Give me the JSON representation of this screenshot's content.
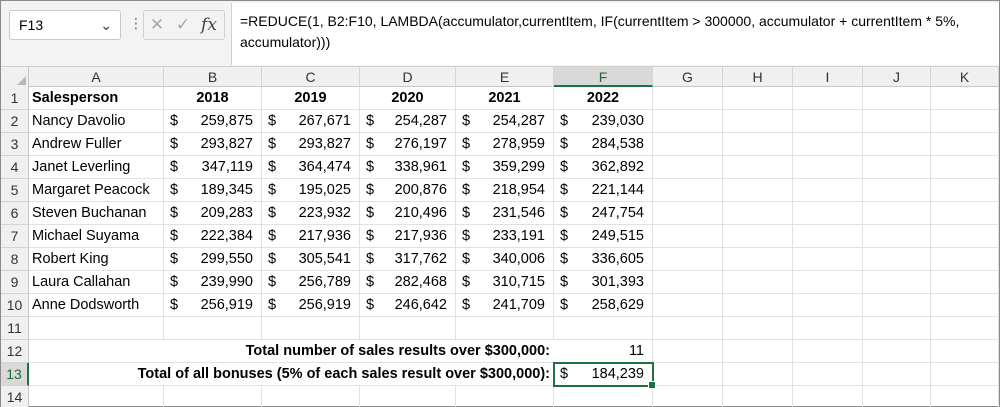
{
  "name_box": "F13",
  "formula": "=REDUCE(1, B2:F10, LAMBDA(accumulator,currentItem, IF(currentItem > 300000, accumulator + currentItem * 5%, accumulator)))",
  "fx_label": "fx",
  "columns": [
    "A",
    "B",
    "C",
    "D",
    "E",
    "F",
    "G",
    "H",
    "I",
    "J",
    "K"
  ],
  "row_numbers": [
    "1",
    "2",
    "3",
    "4",
    "5",
    "6",
    "7",
    "8",
    "9",
    "10",
    "11",
    "12",
    "13",
    "14"
  ],
  "header": {
    "salesperson": "Salesperson",
    "years": [
      "2018",
      "2019",
      "2020",
      "2021",
      "2022"
    ]
  },
  "currency_symbol": "$",
  "data_rows": [
    {
      "name": "Nancy Davolio",
      "values": [
        "259,875",
        "267,671",
        "254,287",
        "254,287",
        "239,030"
      ]
    },
    {
      "name": "Andrew Fuller",
      "values": [
        "293,827",
        "293,827",
        "276,197",
        "278,959",
        "284,538"
      ]
    },
    {
      "name": "Janet Leverling",
      "values": [
        "347,119",
        "364,474",
        "338,961",
        "359,299",
        "362,892"
      ]
    },
    {
      "name": "Margaret Peacock",
      "values": [
        "189,345",
        "195,025",
        "200,876",
        "218,954",
        "221,144"
      ]
    },
    {
      "name": "Steven Buchanan",
      "values": [
        "209,283",
        "223,932",
        "210,496",
        "231,546",
        "247,754"
      ]
    },
    {
      "name": "Michael Suyama",
      "values": [
        "222,384",
        "217,936",
        "217,936",
        "233,191",
        "249,515"
      ]
    },
    {
      "name": "Robert King",
      "values": [
        "299,550",
        "305,541",
        "317,762",
        "340,006",
        "336,605"
      ]
    },
    {
      "name": "Laura Callahan",
      "values": [
        "239,990",
        "256,789",
        "282,468",
        "310,715",
        "301,393"
      ]
    },
    {
      "name": "Anne Dodsworth",
      "values": [
        "256,919",
        "256,919",
        "246,642",
        "241,709",
        "258,629"
      ]
    }
  ],
  "summary": {
    "count_label": "Total number of sales results over $300,000:",
    "count_value": "11",
    "bonus_label": "Total of all bonuses (5% of each sales result over $300,000):",
    "bonus_value": "184,239"
  },
  "accent_color": "#1e7145"
}
